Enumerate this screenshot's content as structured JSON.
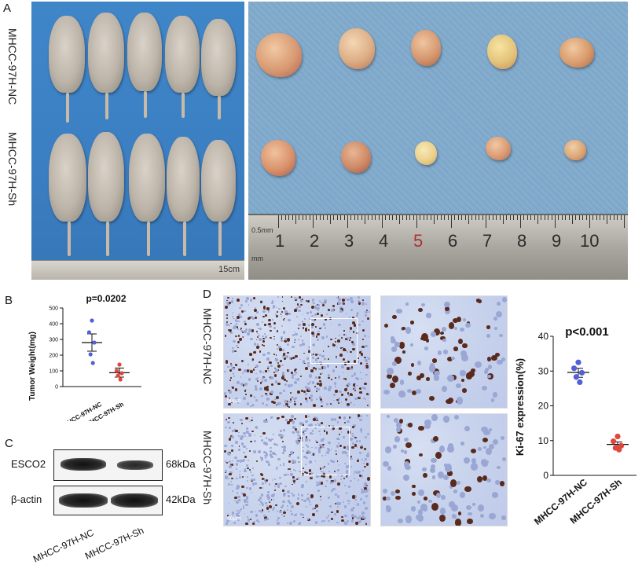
{
  "panels": {
    "A": {
      "letter": "A",
      "row_labels": [
        "MHCC-97H-NC",
        "MHCC-97H-Sh"
      ],
      "mice_ruler_text": "15cm",
      "tumor_ruler_numbers": [
        "1",
        "2",
        "3",
        "4",
        "5",
        "6",
        "7",
        "8",
        "9",
        "10"
      ],
      "tumor_ruler_unit_top": "0.5mm",
      "tumor_ruler_unit_bottom": "mm"
    },
    "B": {
      "letter": "B",
      "pvalue": "p=0.0202",
      "ylabel": "Tumor Weight(mg)",
      "categories": [
        "MHCC-97H-NC",
        "MHCC-97H-Sh"
      ]
    },
    "C": {
      "letter": "C",
      "rows": [
        {
          "label": "ESCO2",
          "size": "68kDa"
        },
        {
          "label": "β-actin",
          "size": "42kDa"
        }
      ],
      "lane_labels": [
        "MHCC-97H-NC",
        "MHCC-97H-Sh"
      ]
    },
    "D": {
      "letter": "D",
      "row_labels": [
        "MHCC-97H-NC",
        "MHCC-97H-Sh"
      ],
      "scale_bar": "50μm",
      "pvalue": "p<0.001",
      "ylabel": "Ki-67 expression(%)",
      "categories": [
        "MHCC-97H-NC",
        "MHCC-97H-Sh"
      ]
    }
  },
  "colors": {
    "nc_dot": "#5060d6",
    "sh_dot": "#e0463c",
    "background_blue": "#3b7fc2"
  },
  "chart_data": [
    {
      "type": "scatter",
      "panel": "B",
      "title": "p=0.0202",
      "xlabel": "",
      "ylabel": "Tumor Weight(mg)",
      "categories": [
        "MHCC-97H-NC",
        "MHCC-97H-Sh"
      ],
      "ylim": [
        0,
        500
      ],
      "yticks": [
        0,
        100,
        200,
        300,
        400,
        500
      ],
      "series": [
        {
          "category": "MHCC-97H-NC",
          "values": [
            420,
            345,
            280,
            205,
            150
          ],
          "mean": 280,
          "sem_low": 225,
          "sem_high": 335,
          "color": "#5060d6"
        },
        {
          "category": "MHCC-97H-Sh",
          "values": [
            140,
            100,
            85,
            70,
            45
          ],
          "mean": 88,
          "sem_low": 60,
          "sem_high": 118,
          "color": "#e0463c"
        }
      ]
    },
    {
      "type": "scatter",
      "panel": "D",
      "title": "p<0.001",
      "xlabel": "",
      "ylabel": "Ki-67 expression(%)",
      "categories": [
        "MHCC-97H-NC",
        "MHCC-97H-Sh"
      ],
      "ylim": [
        0,
        40
      ],
      "yticks": [
        0,
        10,
        20,
        30,
        40
      ],
      "series": [
        {
          "category": "MHCC-97H-NC",
          "values": [
            32.5,
            30.8,
            29.5,
            28.3,
            26.8
          ],
          "mean": 29.6,
          "sem_low": 28.2,
          "sem_high": 30.8,
          "color": "#5060d6"
        },
        {
          "category": "MHCC-97H-Sh",
          "values": [
            11.2,
            9.8,
            8.5,
            7.9,
            7.4
          ],
          "mean": 8.9,
          "sem_low": 8.1,
          "sem_high": 9.6,
          "color": "#e0463c"
        }
      ]
    }
  ]
}
